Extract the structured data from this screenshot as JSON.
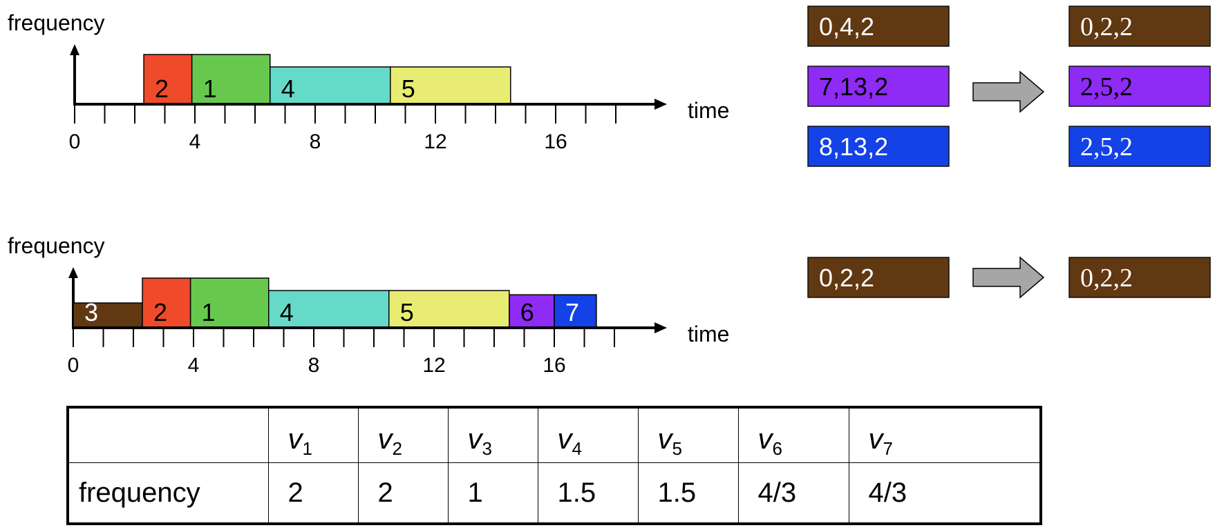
{
  "colors": {
    "task_1": "#66c94e",
    "task_2": "#ef4b2a",
    "task_3": "#603812",
    "task_4": "#66dac8",
    "task_5": "#e9ec72",
    "task_6": "#8e2bf5",
    "task_7": "#1342e6",
    "arrow": "#a6a6a6"
  },
  "top_timeline": {
    "y_axis_label": "frequency",
    "x_axis_label": "time",
    "tick_labels": [
      "0",
      "4",
      "8",
      "12",
      "16"
    ],
    "tasks": [
      {
        "label": "2",
        "start": 2.3,
        "end": 3.9,
        "height": 2,
        "color_key": "task_2"
      },
      {
        "label": "1",
        "start": 3.9,
        "end": 6.5,
        "height": 2,
        "color_key": "task_1"
      },
      {
        "label": "4",
        "start": 6.5,
        "end": 10.5,
        "height": 1.5,
        "color_key": "task_4"
      },
      {
        "label": "5",
        "start": 10.5,
        "end": 14.5,
        "height": 1.5,
        "color_key": "task_5"
      }
    ]
  },
  "bottom_timeline": {
    "y_axis_label": "frequency",
    "x_axis_label": "time",
    "tick_labels": [
      "0",
      "4",
      "8",
      "12",
      "16"
    ],
    "tasks": [
      {
        "label": "3",
        "start": 0,
        "end": 2.3,
        "height": 1,
        "color_key": "task_3",
        "text_color": "#ffffff"
      },
      {
        "label": "2",
        "start": 2.3,
        "end": 3.9,
        "height": 2,
        "color_key": "task_2",
        "text_color": "#000000"
      },
      {
        "label": "1",
        "start": 3.9,
        "end": 6.5,
        "height": 2,
        "color_key": "task_1",
        "text_color": "#000000"
      },
      {
        "label": "4",
        "start": 6.5,
        "end": 10.5,
        "height": 1.5,
        "color_key": "task_4",
        "text_color": "#000000"
      },
      {
        "label": "5",
        "start": 10.5,
        "end": 14.5,
        "height": 1.5,
        "color_key": "task_5",
        "text_color": "#000000"
      },
      {
        "label": "6",
        "start": 14.5,
        "end": 16.0,
        "height": 1.33,
        "color_key": "task_6",
        "text_color": "#000000"
      },
      {
        "label": "7",
        "start": 16.0,
        "end": 17.4,
        "height": 1.33,
        "color_key": "task_7",
        "text_color": "#ffffff"
      }
    ]
  },
  "tag_groups": {
    "top_before": [
      {
        "text": "0,4,2",
        "color_key": "task_3"
      },
      {
        "text": "7,13,2",
        "color_key": "task_6"
      },
      {
        "text": "8,13,2",
        "color_key": "task_7"
      }
    ],
    "top_after": [
      {
        "text": "0,2,2",
        "color_key": "task_3"
      },
      {
        "text": "2,5,2",
        "color_key": "task_6"
      },
      {
        "text": "2,5,2",
        "color_key": "task_7"
      }
    ],
    "bottom_before": [
      {
        "text": "0,2,2",
        "color_key": "task_3"
      }
    ],
    "bottom_after": [
      {
        "text": "0,2,2",
        "color_key": "task_3"
      }
    ]
  },
  "table": {
    "columns": [
      {
        "symbol": "v",
        "sub": "1"
      },
      {
        "symbol": "v",
        "sub": "2"
      },
      {
        "symbol": "v",
        "sub": "3"
      },
      {
        "symbol": "v",
        "sub": "4"
      },
      {
        "symbol": "v",
        "sub": "5"
      },
      {
        "symbol": "v",
        "sub": "6"
      },
      {
        "symbol": "v",
        "sub": "7"
      }
    ],
    "row_label": "frequency",
    "values": [
      "2",
      "2",
      "1",
      "1.5",
      "1.5",
      "4/3",
      "4/3"
    ]
  }
}
